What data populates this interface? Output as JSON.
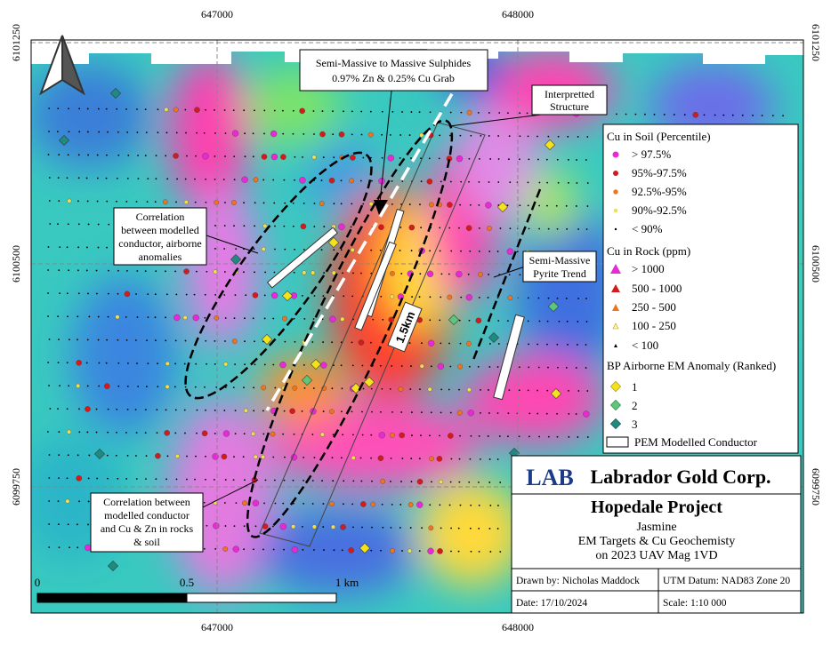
{
  "grid": {
    "top": [
      "647000",
      "648000"
    ],
    "bottom": [
      "647000",
      "648000"
    ],
    "left": [
      "6101250",
      "6100500",
      "6099750"
    ],
    "right": [
      "6101250",
      "6100500",
      "6099750"
    ]
  },
  "callouts": {
    "sulphides": [
      "Semi-Massive to Massive Sulphides",
      "0.97% Zn & 0.25% Cu Grab"
    ],
    "structure": [
      "Interpretted",
      "Structure"
    ],
    "airborne": [
      "Correlation",
      "between modelled",
      "conductor, airborne",
      "anomalies"
    ],
    "pyrite": [
      "Semi-Massive",
      "Pyrite Trend"
    ],
    "rocks": [
      "Correlation between",
      "modelled conductor",
      "and Cu & Zn in rocks",
      "& soil"
    ],
    "length": "1.5km"
  },
  "legend": {
    "soil_title": "Cu in Soil (Percentile)",
    "soil": [
      "> 97.5%",
      "95%-97.5%",
      "92.5%-95%",
      "90%-92.5%",
      "< 90%"
    ],
    "rock_title": "Cu in Rock (ppm)",
    "rock": [
      "> 1000",
      "500 - 1000",
      "250 - 500",
      "100 - 250",
      "< 100"
    ],
    "em_title": "BP Airborne EM Anomaly (Ranked)",
    "em": [
      "1",
      "2",
      "3"
    ],
    "pem": "PEM Modelled Conductor"
  },
  "title_block": {
    "logo": "LAB",
    "company": "Labrador Gold Corp.",
    "project": "Hopedale Project",
    "lines": [
      "Jasmine",
      "EM Targets & Cu Geochemisty",
      "on 2023 UAV Mag 1VD"
    ],
    "drawn_by": "Drawn by: Nicholas Maddock",
    "datum": "UTM Datum: NAD83 Zone 20",
    "date": "Date: 17/10/2024",
    "scale": "Scale: 1:10 000"
  },
  "scale_bar": [
    "0",
    "0.5",
    "1 km"
  ]
}
